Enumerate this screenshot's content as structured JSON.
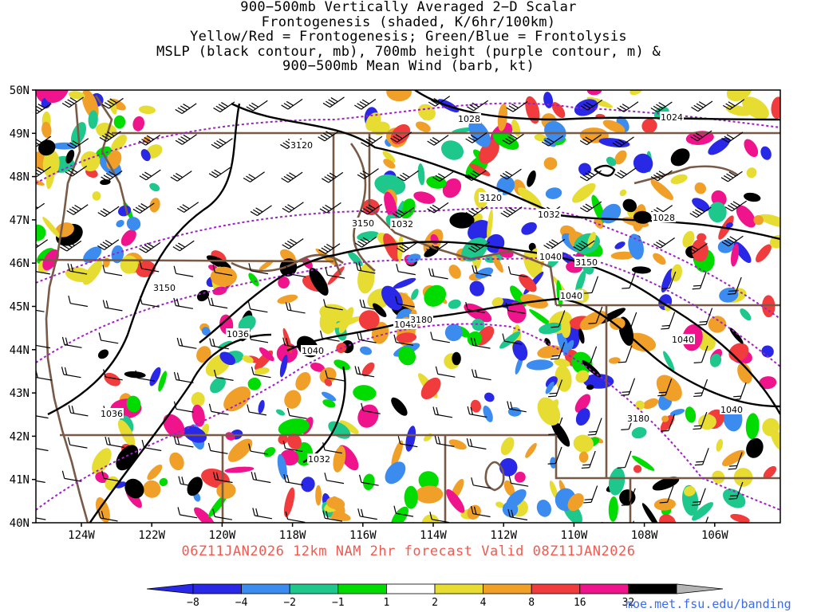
{
  "title_lines": [
    "900−500mb Vertically Averaged 2−D Scalar",
    "Frontogenesis (shaded, K/6hr/100km)",
    "Yellow/Red = Frontogenesis;  Green/Blue = Frontolysis",
    "MSLP (black contour, mb), 700mb height (purple contour, m) &",
    "900−500mb Mean Wind (barb, kt)"
  ],
  "lat_labels": [
    "50N",
    "49N",
    "48N",
    "47N",
    "46N",
    "45N",
    "44N",
    "43N",
    "42N",
    "41N",
    "40N"
  ],
  "lon_labels": [
    "124W",
    "122W",
    "120W",
    "118W",
    "116W",
    "114W",
    "112W",
    "110W",
    "108W",
    "106W"
  ],
  "mslp_labels": [
    "1028",
    "1024",
    "1032",
    "1028",
    "1036",
    "1032",
    "1036",
    "1040",
    "1040",
    "1040",
    "1036",
    "1040",
    "1032",
    "1040",
    "1040"
  ],
  "height_labels": [
    "3120",
    "3120",
    "3150",
    "3150",
    "3150",
    "3180",
    "3180"
  ],
  "caption": "06Z11JAN2026 12km NAM 2hr forecast Valid 08Z11JAN2026",
  "credit": "moe.met.fsu.edu/banding",
  "colorbar": {
    "labels": [
      "−8",
      "−4",
      "−2",
      "−1",
      "1",
      "2",
      "4",
      "8",
      "16",
      "32"
    ],
    "colors": [
      "#2828e6",
      "#3c8cf0",
      "#1ec88c",
      "#00dc00",
      "#ffffff",
      "#e6dc32",
      "#f0a028",
      "#f03c3c",
      "#f0148c",
      "#000000"
    ],
    "end_high": "#b4b4b4"
  },
  "colors": {
    "mslp": "#000000",
    "height": "#a020c8",
    "borders": "#785a46",
    "frontolysis_strong": "#2828e6",
    "frontogenesis_strong": "#000000"
  }
}
